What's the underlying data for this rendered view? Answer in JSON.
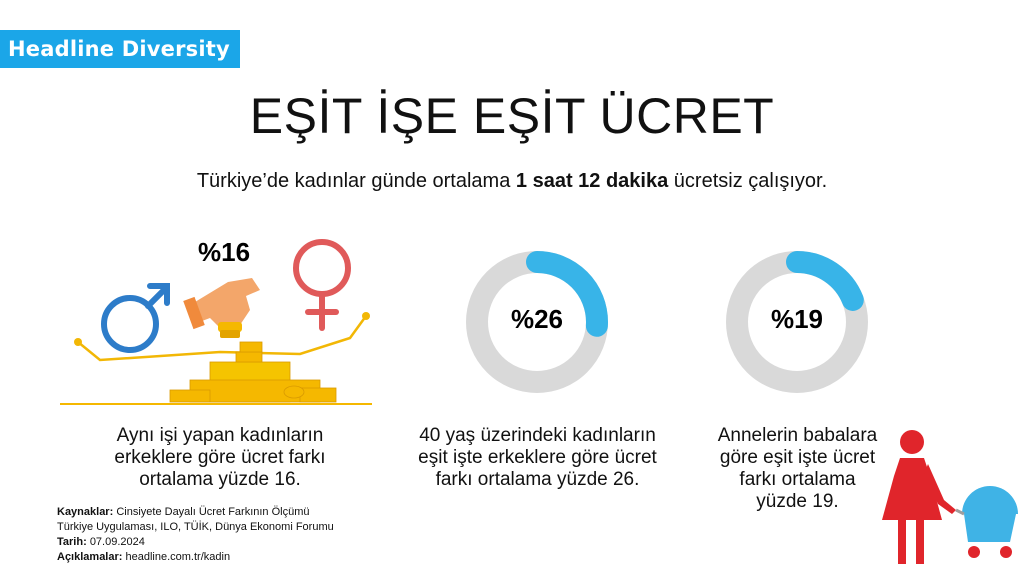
{
  "brand": {
    "label": "Headline Diversity",
    "color": "#1ba6e8"
  },
  "title": "EŞİT İŞE EŞİT ÜCRET",
  "subtitle": {
    "before": "Türkiye’de kadınlar günde ortalama ",
    "bold": "1 saat 12 dakika",
    "after": " ücretsiz çalışıyor."
  },
  "stats": [
    {
      "label": "%16",
      "value": 16,
      "caption": [
        "Aynı işi yapan kadınların",
        "erkeklere göre ücret farkı",
        "ortalama yüzde 16."
      ]
    },
    {
      "label": "%26",
      "value": 26,
      "caption": [
        "40 yaş üzerindeki kadınların",
        "eşit işte erkeklere göre ücret",
        "farkı ortalama yüzde 26."
      ]
    },
    {
      "label": "%19",
      "value": 19,
      "caption": [
        "Annelerin babalara",
        "göre eşit işte ücret",
        "farkı ortalama",
        "yüzde 19."
      ]
    }
  ],
  "sources": {
    "kaynaklar_label": "Kaynaklar:",
    "kaynaklar_line1": "Cinsiyete Dayalı Ücret Farkının Ölçümü",
    "kaynaklar_line2": "Türkiye Uygulaması, ILO, TÜİK, Dünya Ekonomi Forumu",
    "tarih_label": "Tarih:",
    "tarih_value": "07.09.2024",
    "aciklamalar_label": "Açıklamalar:",
    "aciklamalar_value": "headline.com.tr/kadin"
  },
  "colors": {
    "male": "#2d7cc9",
    "female": "#e05a5a",
    "ring": "#d9d9d9",
    "ring_fill": "#38b4e8",
    "gold": "#f5b800",
    "mother": "#e0252b"
  },
  "icons": [
    "male-symbol-icon",
    "female-symbol-icon",
    "hand-coin-icon",
    "coin-stack-icon",
    "mother-stroller-icon"
  ]
}
